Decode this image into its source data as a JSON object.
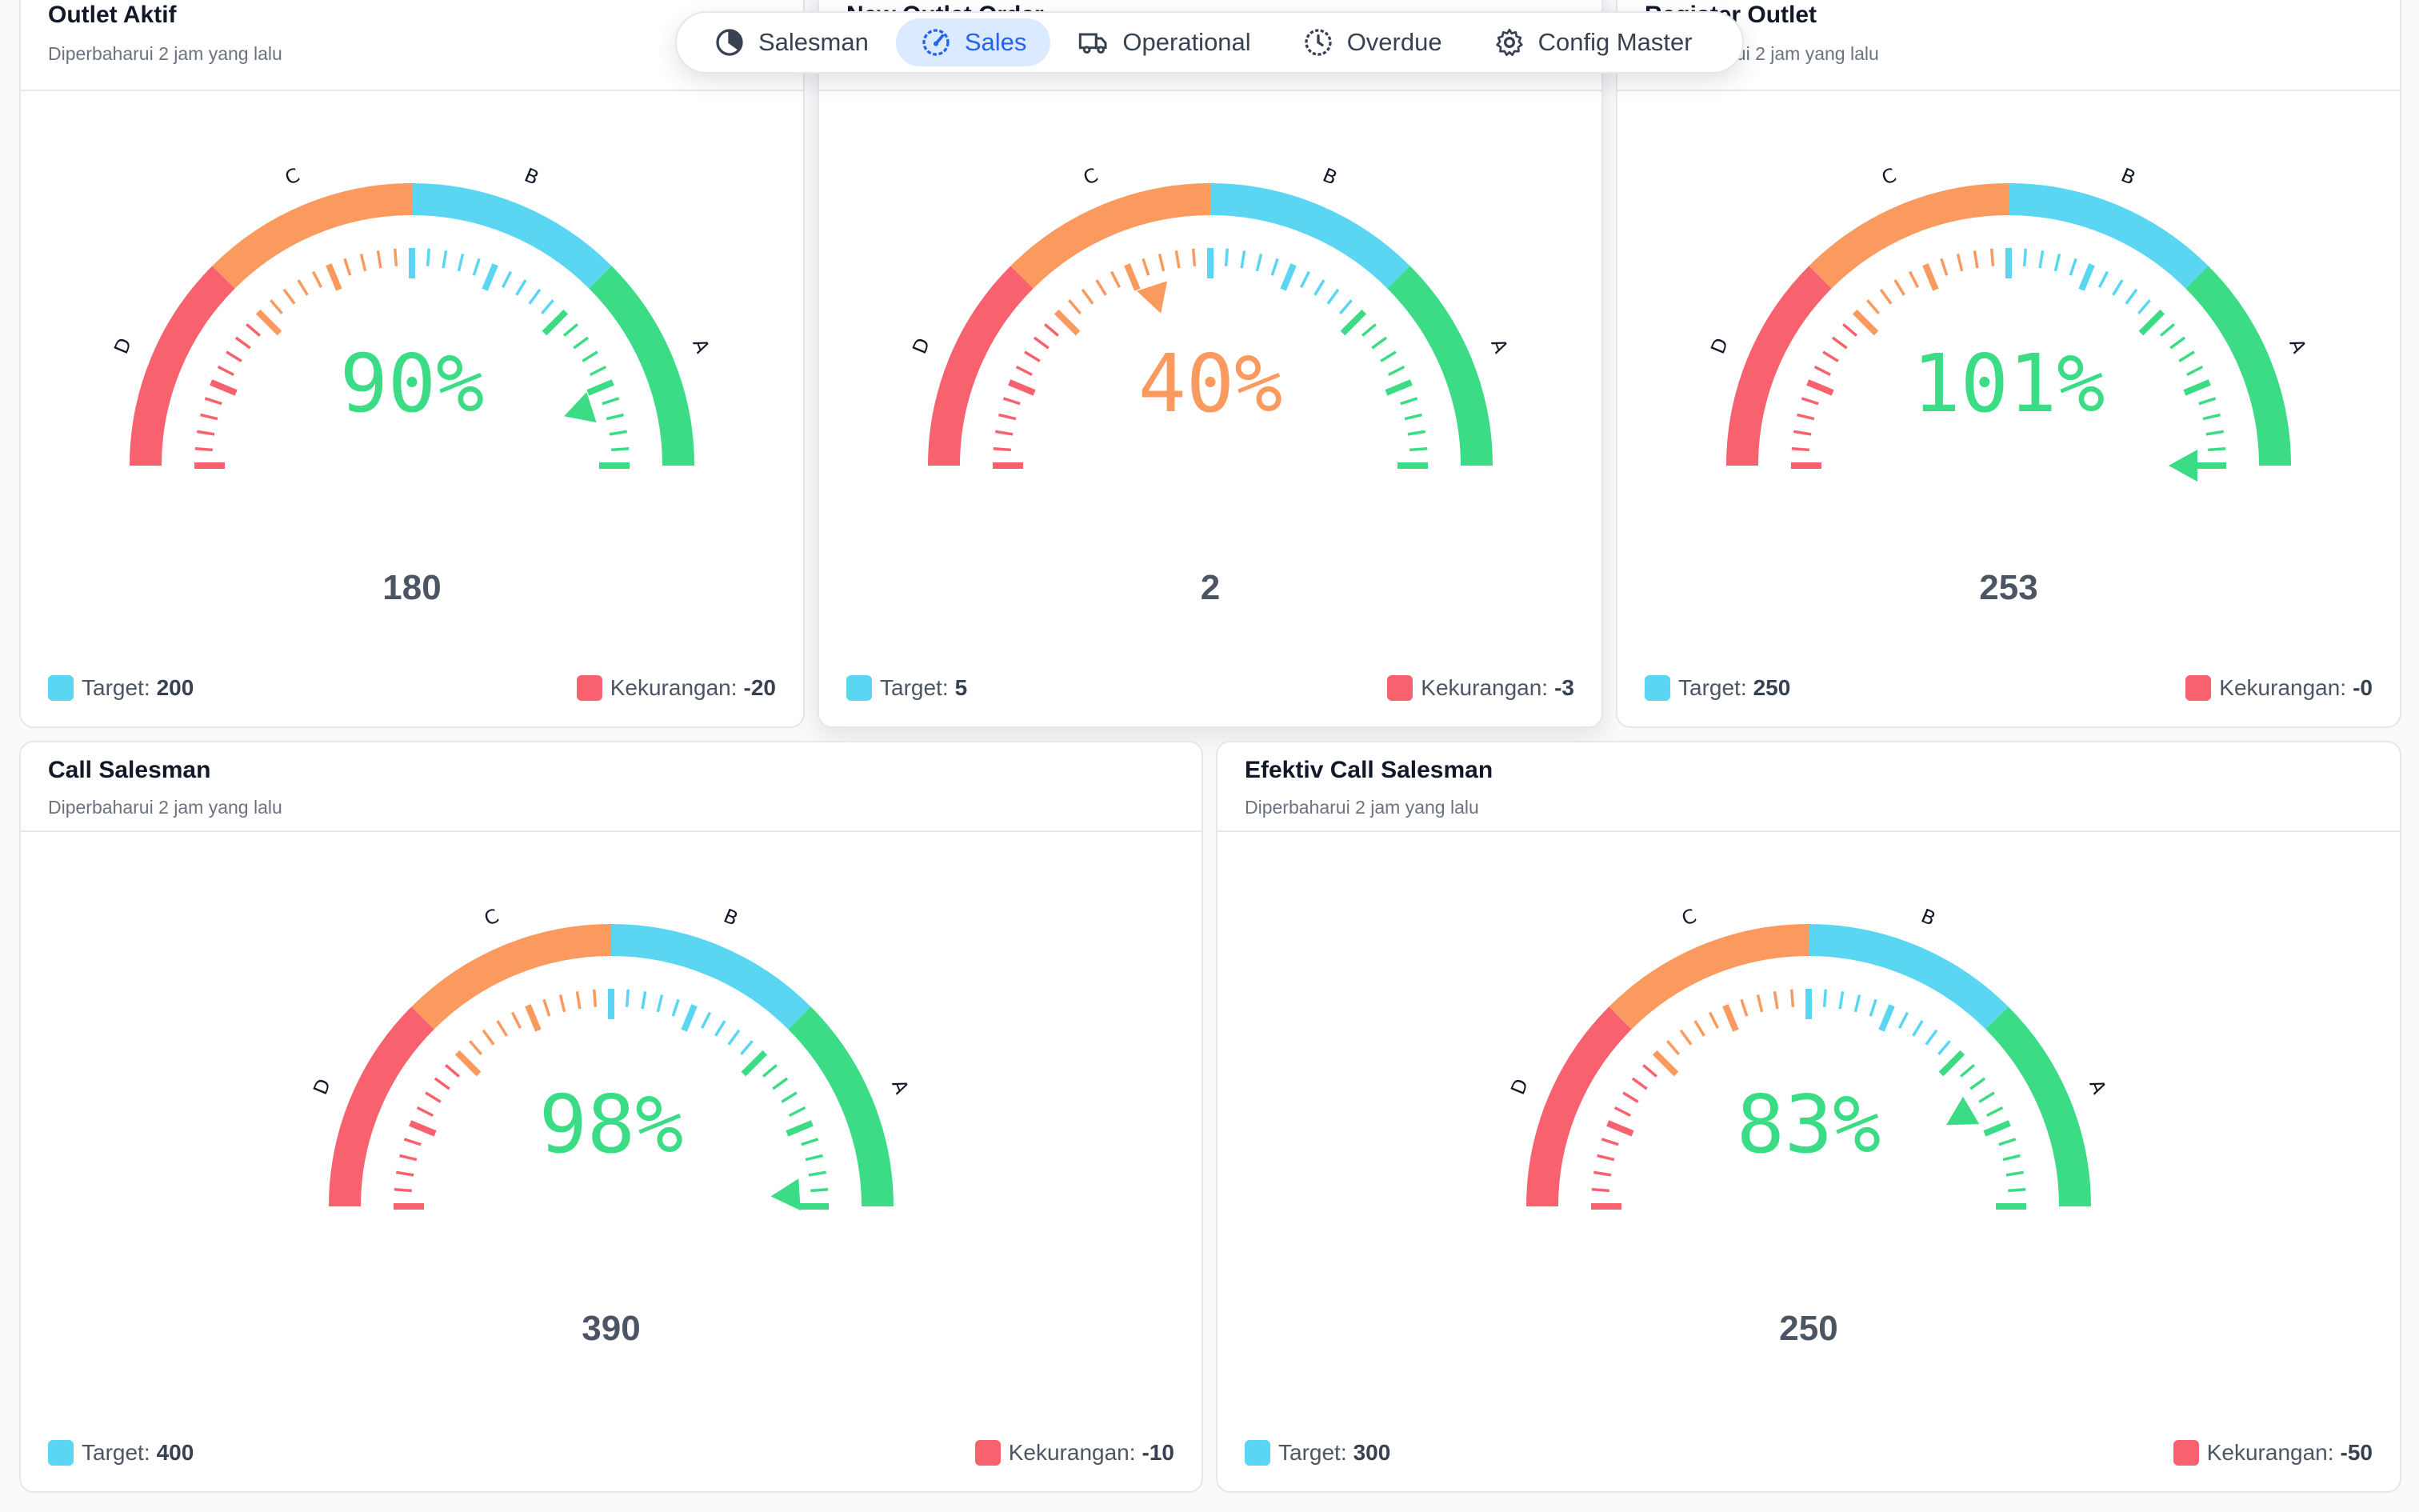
{
  "nav": {
    "items": [
      {
        "label": "Salesman",
        "icon": "pie-chart-icon",
        "active": false
      },
      {
        "label": "Sales",
        "icon": "speedometer-icon",
        "active": true
      },
      {
        "label": "Operational",
        "icon": "truck-icon",
        "active": false
      },
      {
        "label": "Overdue",
        "icon": "clock-icon",
        "active": false
      },
      {
        "label": "Config Master",
        "icon": "gear-icon",
        "active": false
      }
    ]
  },
  "colors": {
    "D": "#f8626f",
    "C": "#fb9a5f",
    "B": "#5ad6f3",
    "A": "#3bdc85",
    "target": "#5ad6f3",
    "shortfall": "#f8626f",
    "nav_active": "#2563eb"
  },
  "grade_labels": [
    "D",
    "C",
    "B",
    "A"
  ],
  "cards": [
    {
      "title": "Outlet Aktif",
      "subtitle": "Diperbaharui 2 jam yang lalu",
      "percent_text": "90%",
      "percent": 90,
      "value": "180",
      "target_label": "Target:",
      "target": "200",
      "shortfall_label": "Kekurangan:",
      "shortfall": "-20"
    },
    {
      "title": "New Outlet Order",
      "subtitle": "",
      "percent_text": "40%",
      "percent": 40,
      "value": "2",
      "target_label": "Target:",
      "target": "5",
      "shortfall_label": "Kekurangan:",
      "shortfall": "-3"
    },
    {
      "title": "Register Outlet",
      "subtitle": "Diperbaharui 2 jam yang lalu",
      "percent_text": "101%",
      "percent": 101,
      "value": "253",
      "target_label": "Target:",
      "target": "250",
      "shortfall_label": "Kekurangan:",
      "shortfall": "-0"
    },
    {
      "title": "Call Salesman",
      "subtitle": "Diperbaharui 2 jam yang lalu",
      "percent_text": "98%",
      "percent": 98,
      "value": "390",
      "target_label": "Target:",
      "target": "400",
      "shortfall_label": "Kekurangan:",
      "shortfall": "-10"
    },
    {
      "title": "Efektiv Call Salesman",
      "subtitle": "Diperbaharui 2 jam yang lalu",
      "percent_text": "83%",
      "percent": 83,
      "value": "250",
      "target_label": "Target:",
      "target": "300",
      "shortfall_label": "Kekurangan:",
      "shortfall": "-50"
    }
  ]
}
